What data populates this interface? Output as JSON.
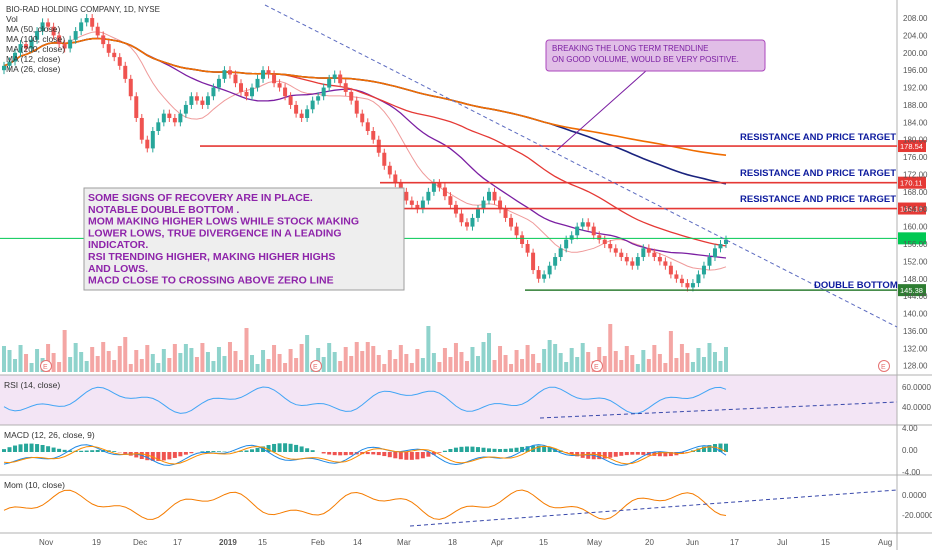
{
  "chart_data": {
    "type": "candlestick",
    "title": "BIO-RAD HOLDING COMPANY, 1D, NYSE",
    "indicator_labels": [
      "Vol",
      "MA (50, close)",
      "MA (100, close)",
      "MA (200, close)",
      "MA (12, close)",
      "MA (26, close)"
    ],
    "price_axis": {
      "ticks": [
        128,
        132,
        136,
        140,
        144,
        148,
        152,
        156,
        160,
        164,
        168,
        172,
        176,
        180,
        184,
        188,
        192,
        196,
        200,
        204,
        208
      ],
      "ylim": [
        127,
        211
      ]
    },
    "x_ticks": [
      "Nov",
      "19",
      "Dec",
      "17",
      "2019",
      "15",
      "Feb",
      "14",
      "Mar",
      "18",
      "Apr",
      "15",
      "May",
      "20",
      "Jun",
      "17",
      "Jul",
      "15",
      "Aug"
    ],
    "price_levels": [
      {
        "value": 178.54,
        "label": "178.54",
        "color": "#e53935"
      },
      {
        "value": 170.11,
        "label": "170.11",
        "color": "#e53935"
      },
      {
        "value": 164.16,
        "label": "164.16",
        "color": "#e53935"
      },
      {
        "value": 157.3,
        "label": "",
        "color": "#00c853"
      },
      {
        "value": 145.38,
        "label": "145.38",
        "color": "#2e7d32"
      }
    ],
    "target_labels": [
      "RESISTANCE AND PRICE TARGET",
      "RESISTANCE AND PRICE TARGET",
      "RESISTANCE AND PRICE TARGET"
    ],
    "double_bottom_label": "DOUBLE BOTTOM",
    "breakout_note": "BREAKING THE LONG TERM TRENDLINE\nON GOOD VOLUME,  WOULD BE VERY POSITIVE.",
    "summary_note": "SOME SIGNS OF RECOVERY ARE IN PLACE.\nNOTABLE DOUBLE BOTTOM .\nMOM MAKING HIGHER LOWS WHILE STOCK MAKING\nLOWER LOWS, TRUE DIVERGENCE IN A LEADING\nINDICATOR.\nRSI TRENDING HIGHER, MAKING HIGHER HIGHS\nAND LOWS.\nMACD CLOSE TO CROSSING ABOVE ZERO LINE",
    "earnings_markers": [
      "E",
      "E",
      "E",
      "E"
    ],
    "rsi": {
      "label": "RSI (14, close)",
      "ticks": [
        "60.0000",
        "40.0000"
      ]
    },
    "macd": {
      "label": "MACD (12, 26, close, 9)",
      "ticks": [
        "4.00",
        "0.00",
        "-4.00"
      ]
    },
    "momentum": {
      "label": "Mom (10, close)",
      "ticks": [
        "0.0000",
        "-20.0000"
      ]
    },
    "close_series": [
      197,
      198,
      200,
      202,
      201,
      203,
      205,
      207,
      206,
      204,
      202,
      201,
      203,
      205,
      207,
      208,
      206,
      204,
      202,
      200,
      199,
      197,
      194,
      190,
      185,
      180,
      178,
      182,
      184,
      186,
      185,
      184,
      186,
      188,
      190,
      189,
      188,
      190,
      192,
      194,
      196,
      195,
      193,
      191,
      190,
      192,
      194,
      196,
      195,
      193,
      192,
      190,
      188,
      186,
      185,
      187,
      189,
      190,
      192,
      194,
      195,
      193,
      191,
      189,
      186,
      184,
      182,
      180,
      177,
      174,
      172,
      170,
      168,
      166,
      165,
      164,
      166,
      168,
      170,
      169,
      167,
      165,
      163,
      161,
      160,
      162,
      164,
      166,
      168,
      166,
      164,
      162,
      160,
      158,
      156,
      154,
      150,
      148,
      149,
      151,
      153,
      155,
      157,
      158,
      160,
      161,
      160,
      158,
      157,
      156,
      155,
      154,
      153,
      152,
      151,
      153,
      155,
      154,
      153,
      152,
      151,
      149,
      148,
      147,
      146,
      147,
      149,
      151,
      153,
      155,
      156,
      157
    ]
  },
  "colors": {
    "up": "#26a69a",
    "down": "#ef5350",
    "ma50": "#e53935",
    "ma100": "#1a237e",
    "ma200": "#ef6c00",
    "ma12": "#ef9a9a",
    "ma26": "#7b1fa2",
    "note_text": "#7b1fa2",
    "target_text": "#0d1b9e"
  }
}
